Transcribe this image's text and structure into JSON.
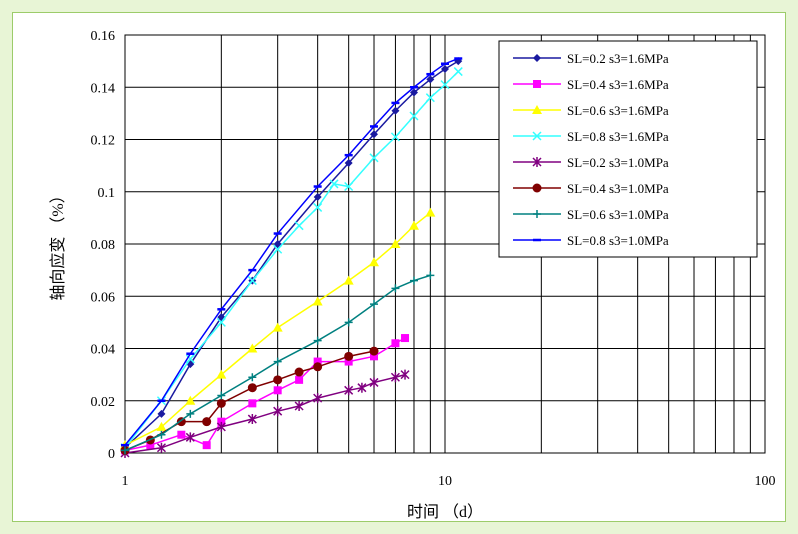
{
  "chart_data": {
    "type": "line",
    "xscale": "log",
    "xlim": [
      1,
      100
    ],
    "ylim": [
      0,
      0.16
    ],
    "xticks": [
      1,
      10,
      100
    ],
    "yticks": [
      0,
      0.02,
      0.04,
      0.06,
      0.08,
      0.1,
      0.12,
      0.14,
      0.16
    ],
    "xlabel": "时间 （d）",
    "ylabel": "轴向应变 （%）",
    "grid": "major and minor (log) vertical, major horizontal",
    "legend_position": "top-right",
    "series": [
      {
        "name": "SL=0.2 s3=1.6MPa",
        "color": "#1a1aa0",
        "marker": "diamond",
        "x": [
          1.0,
          1.3,
          1.6,
          2.0,
          2.5,
          3.0,
          4.0,
          5.0,
          6.0,
          7.0,
          8.0,
          9.0,
          10.0,
          11.0
        ],
        "y": [
          0.002,
          0.015,
          0.034,
          0.052,
          0.066,
          0.08,
          0.098,
          0.111,
          0.122,
          0.131,
          0.138,
          0.143,
          0.147,
          0.15
        ]
      },
      {
        "name": "SL=0.4 s3=1.6MPa",
        "color": "#ff00ff",
        "marker": "square",
        "x": [
          1.0,
          1.2,
          1.5,
          1.8,
          2.0,
          2.5,
          3.0,
          3.5,
          4.0,
          5.0,
          6.0,
          7.0,
          7.5
        ],
        "y": [
          0.001,
          0.003,
          0.007,
          0.003,
          0.012,
          0.019,
          0.024,
          0.028,
          0.035,
          0.035,
          0.037,
          0.042,
          0.044
        ]
      },
      {
        "name": "SL=0.6 s3=1.6MPa",
        "color": "#ffff00",
        "marker": "triangle",
        "x": [
          1.0,
          1.3,
          1.6,
          2.0,
          2.5,
          3.0,
          4.0,
          5.0,
          6.0,
          7.0,
          8.0,
          9.0
        ],
        "y": [
          0.003,
          0.01,
          0.02,
          0.03,
          0.04,
          0.048,
          0.058,
          0.066,
          0.073,
          0.08,
          0.087,
          0.092
        ]
      },
      {
        "name": "SL=0.8 s3=1.6MPa",
        "color": "#33ffff",
        "marker": "x",
        "x": [
          1.0,
          1.3,
          1.6,
          2.0,
          2.5,
          3.0,
          3.5,
          4.0,
          4.5,
          5.0,
          6.0,
          7.0,
          8.0,
          9.0,
          10.0,
          11.0
        ],
        "y": [
          0.002,
          0.02,
          0.036,
          0.05,
          0.066,
          0.078,
          0.087,
          0.094,
          0.103,
          0.102,
          0.113,
          0.121,
          0.129,
          0.136,
          0.141,
          0.146
        ]
      },
      {
        "name": "SL=0.2 s3=1.0MPa",
        "color": "#800080",
        "marker": "asterisk",
        "x": [
          1.0,
          1.3,
          1.6,
          2.0,
          2.5,
          3.0,
          3.5,
          4.0,
          5.0,
          5.5,
          6.0,
          7.0,
          7.5
        ],
        "y": [
          0.0,
          0.002,
          0.006,
          0.01,
          0.013,
          0.016,
          0.018,
          0.021,
          0.024,
          0.025,
          0.027,
          0.029,
          0.03
        ]
      },
      {
        "name": "SL=0.4 s3=1.0MPa",
        "color": "#800000",
        "marker": "circle",
        "x": [
          1.0,
          1.2,
          1.5,
          1.8,
          2.0,
          2.5,
          3.0,
          3.5,
          4.0,
          5.0,
          6.0
        ],
        "y": [
          0.001,
          0.005,
          0.012,
          0.012,
          0.019,
          0.025,
          0.028,
          0.031,
          0.033,
          0.037,
          0.039
        ]
      },
      {
        "name": "SL=0.6 s3=1.0MPa",
        "color": "#008080",
        "marker": "plus",
        "x": [
          1.0,
          1.3,
          1.6,
          2.0,
          2.5,
          3.0,
          4.0,
          5.0,
          6.0,
          7.0,
          8.0,
          9.0
        ],
        "y": [
          0.001,
          0.007,
          0.015,
          0.022,
          0.029,
          0.035,
          0.043,
          0.05,
          0.057,
          0.063,
          0.066,
          0.068
        ]
      },
      {
        "name": "SL=0.8 s3=1.0MPa",
        "color": "#0000ff",
        "marker": "dash",
        "x": [
          1.0,
          1.3,
          1.6,
          2.0,
          2.5,
          3.0,
          4.0,
          5.0,
          6.0,
          7.0,
          8.0,
          9.0,
          10.0,
          11.0
        ],
        "y": [
          0.003,
          0.02,
          0.038,
          0.055,
          0.07,
          0.084,
          0.102,
          0.114,
          0.125,
          0.134,
          0.14,
          0.145,
          0.149,
          0.151
        ]
      }
    ]
  }
}
